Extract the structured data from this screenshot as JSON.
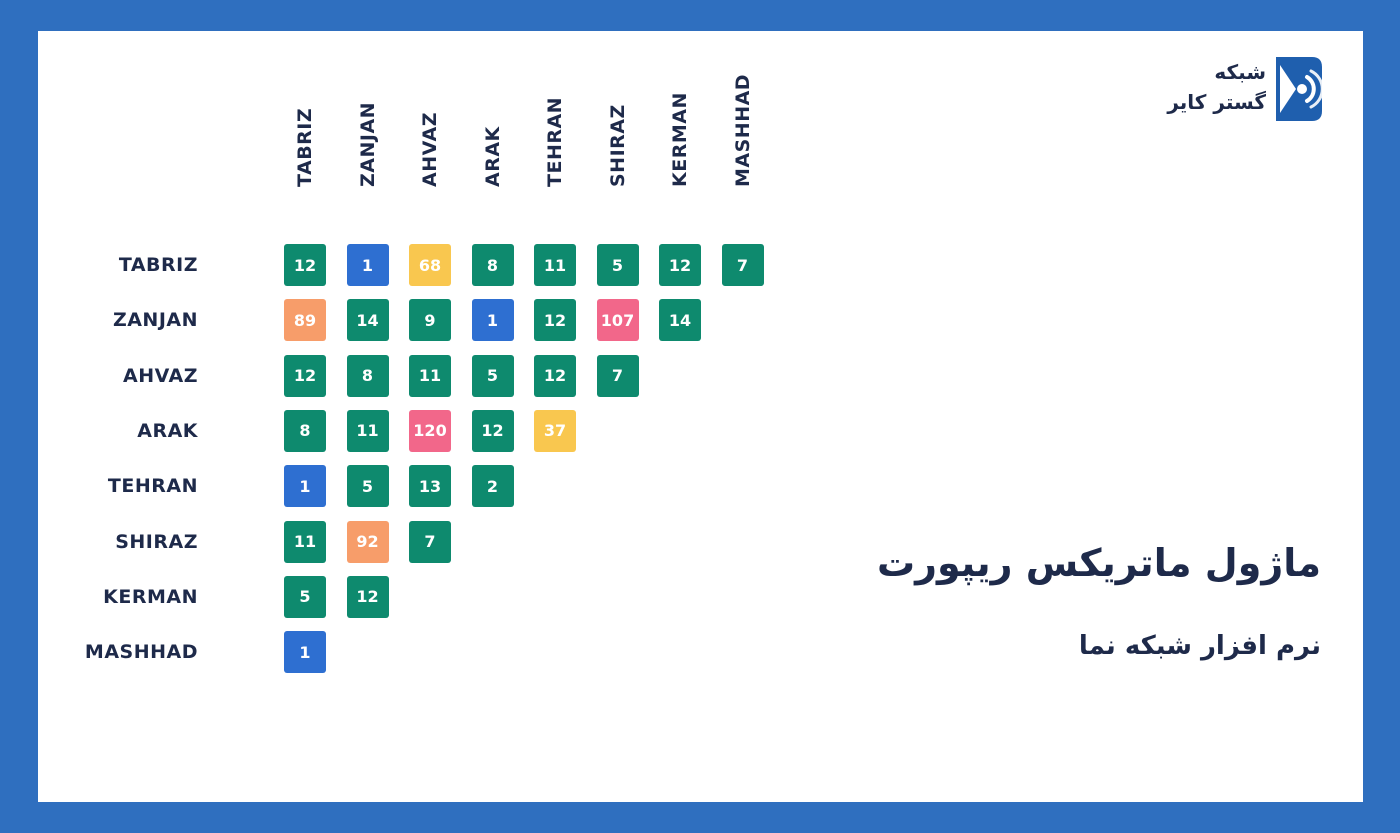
{
  "brand": {
    "line1": "شبکه",
    "line2": "گستر کایر",
    "logo_icon": "sound-wave-in-square-icon",
    "logo_color": "#1f5fae"
  },
  "title": "ماژول ماتریکس ریپورت",
  "subtitle": "نرم افزار شبکه نما",
  "colors": {
    "frame": "#2f6fbf",
    "green": "#0e8a6e",
    "blue": "#2e6fd1",
    "yellow": "#f9c74f",
    "orange": "#f79d6a",
    "pink": "#f2678a",
    "text_dark": "#1e2a4a"
  },
  "matrix": {
    "columns": [
      "TABRIZ",
      "ZANJAN",
      "AHVAZ",
      "ARAK",
      "TEHRAN",
      "SHIRAZ",
      "KERMAN",
      "MASHHAD"
    ],
    "rows": [
      {
        "label": "TABRIZ",
        "cells": [
          {
            "v": "12",
            "c": "green"
          },
          {
            "v": "1",
            "c": "blue"
          },
          {
            "v": "68",
            "c": "yellow"
          },
          {
            "v": "8",
            "c": "green"
          },
          {
            "v": "11",
            "c": "green"
          },
          {
            "v": "5",
            "c": "green"
          },
          {
            "v": "12",
            "c": "green"
          },
          {
            "v": "7",
            "c": "green"
          }
        ]
      },
      {
        "label": "ZANJAN",
        "cells": [
          {
            "v": "89",
            "c": "orange"
          },
          {
            "v": "14",
            "c": "green"
          },
          {
            "v": "9",
            "c": "green"
          },
          {
            "v": "1",
            "c": "blue"
          },
          {
            "v": "12",
            "c": "green"
          },
          {
            "v": "107",
            "c": "pink"
          },
          {
            "v": "14",
            "c": "green"
          }
        ]
      },
      {
        "label": "AHVAZ",
        "cells": [
          {
            "v": "12",
            "c": "green"
          },
          {
            "v": "8",
            "c": "green"
          },
          {
            "v": "11",
            "c": "green"
          },
          {
            "v": "5",
            "c": "green"
          },
          {
            "v": "12",
            "c": "green"
          },
          {
            "v": "7",
            "c": "green"
          }
        ]
      },
      {
        "label": "ARAK",
        "cells": [
          {
            "v": "8",
            "c": "green"
          },
          {
            "v": "11",
            "c": "green"
          },
          {
            "v": "120",
            "c": "pink"
          },
          {
            "v": "12",
            "c": "green"
          },
          {
            "v": "37",
            "c": "yellow"
          }
        ]
      },
      {
        "label": "TEHRAN",
        "cells": [
          {
            "v": "1",
            "c": "blue"
          },
          {
            "v": "5",
            "c": "green"
          },
          {
            "v": "13",
            "c": "green"
          },
          {
            "v": "2",
            "c": "green"
          }
        ]
      },
      {
        "label": "SHIRAZ",
        "cells": [
          {
            "v": "11",
            "c": "green"
          },
          {
            "v": "92",
            "c": "orange"
          },
          {
            "v": "7",
            "c": "green"
          }
        ]
      },
      {
        "label": "KERMAN",
        "cells": [
          {
            "v": "5",
            "c": "green"
          },
          {
            "v": "12",
            "c": "green"
          }
        ]
      },
      {
        "label": "MASHHAD",
        "cells": [
          {
            "v": "1",
            "c": "blue"
          }
        ]
      }
    ]
  }
}
